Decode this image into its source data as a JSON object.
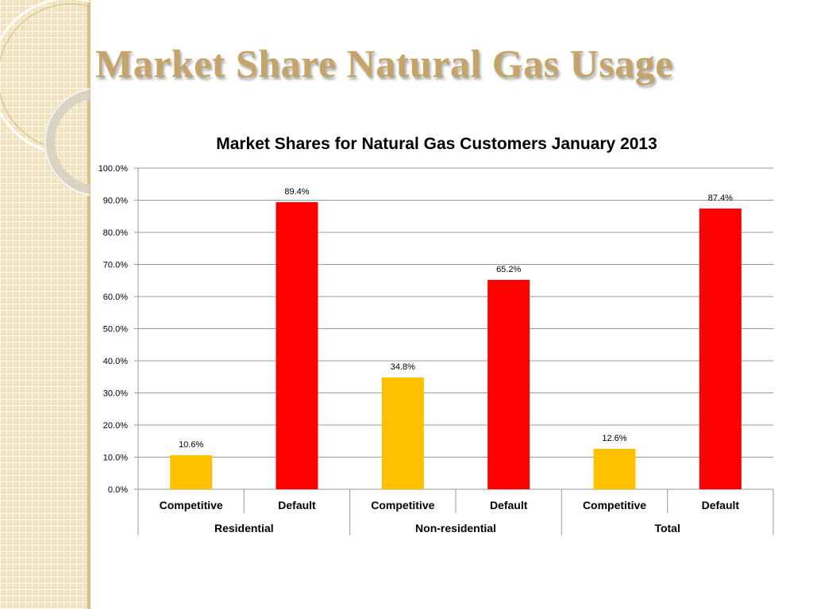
{
  "slide": {
    "title": "Market Share Natural Gas Usage"
  },
  "colors": {
    "title": "#c4a468",
    "competitive": "#ffc000",
    "default": "#ff0000",
    "gridline": "#9a9a9a",
    "side_panel": "#f1e3bd"
  },
  "chart_data": {
    "type": "bar",
    "title": "Market Shares for Natural Gas Customers January 2013",
    "xlabel": "",
    "ylabel": "",
    "ylim": [
      0,
      100
    ],
    "y_ticks": [
      "0.0%",
      "10.0%",
      "20.0%",
      "30.0%",
      "40.0%",
      "50.0%",
      "60.0%",
      "70.0%",
      "80.0%",
      "90.0%",
      "100.0%"
    ],
    "grid": true,
    "legend": "none",
    "groups": [
      "Residential",
      "Non-residential",
      "Total"
    ],
    "categories": [
      "Competitive",
      "Default",
      "Competitive",
      "Default",
      "Competitive",
      "Default"
    ],
    "values": [
      10.6,
      89.4,
      34.8,
      65.2,
      12.6,
      87.4
    ],
    "data_labels": [
      "10.6%",
      "89.4%",
      "34.8%",
      "65.2%",
      "12.6%",
      "87.4%"
    ],
    "bar_colors": [
      "#ffc000",
      "#ff0000",
      "#ffc000",
      "#ff0000",
      "#ffc000",
      "#ff0000"
    ]
  }
}
